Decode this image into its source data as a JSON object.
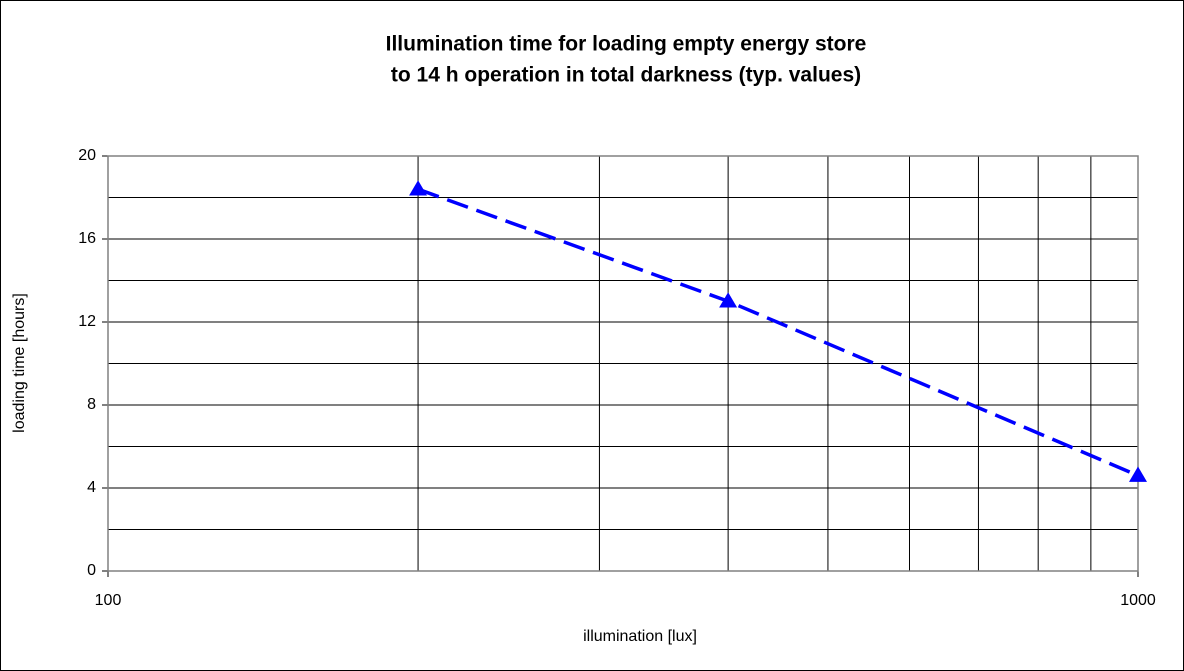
{
  "chart_data": {
    "type": "line",
    "title": [
      "Illumination time for loading empty energy store",
      "to 14 h operation in total darkness (typ. values)"
    ],
    "x_label": "illumination [lux]",
    "y_label": "loading time [hours]",
    "x": [
      200,
      400,
      1000
    ],
    "series": [
      {
        "name": "loading time",
        "color": "#0000ff",
        "values": [
          18.4,
          13.0,
          4.6
        ]
      }
    ],
    "xlim": [
      100,
      1000
    ],
    "xticks": [
      100,
      1000
    ],
    "x_log": true,
    "x_minor_gridlines": [
      200,
      300,
      400,
      500,
      600,
      700,
      800,
      900
    ],
    "ylim": [
      0,
      20
    ],
    "yticks": [
      0,
      4,
      8,
      12,
      16,
      20
    ],
    "y_minor_gridlines": [
      2,
      6,
      10,
      14,
      18
    ],
    "grid": true,
    "line_style": "dashed",
    "marker": "triangle"
  }
}
